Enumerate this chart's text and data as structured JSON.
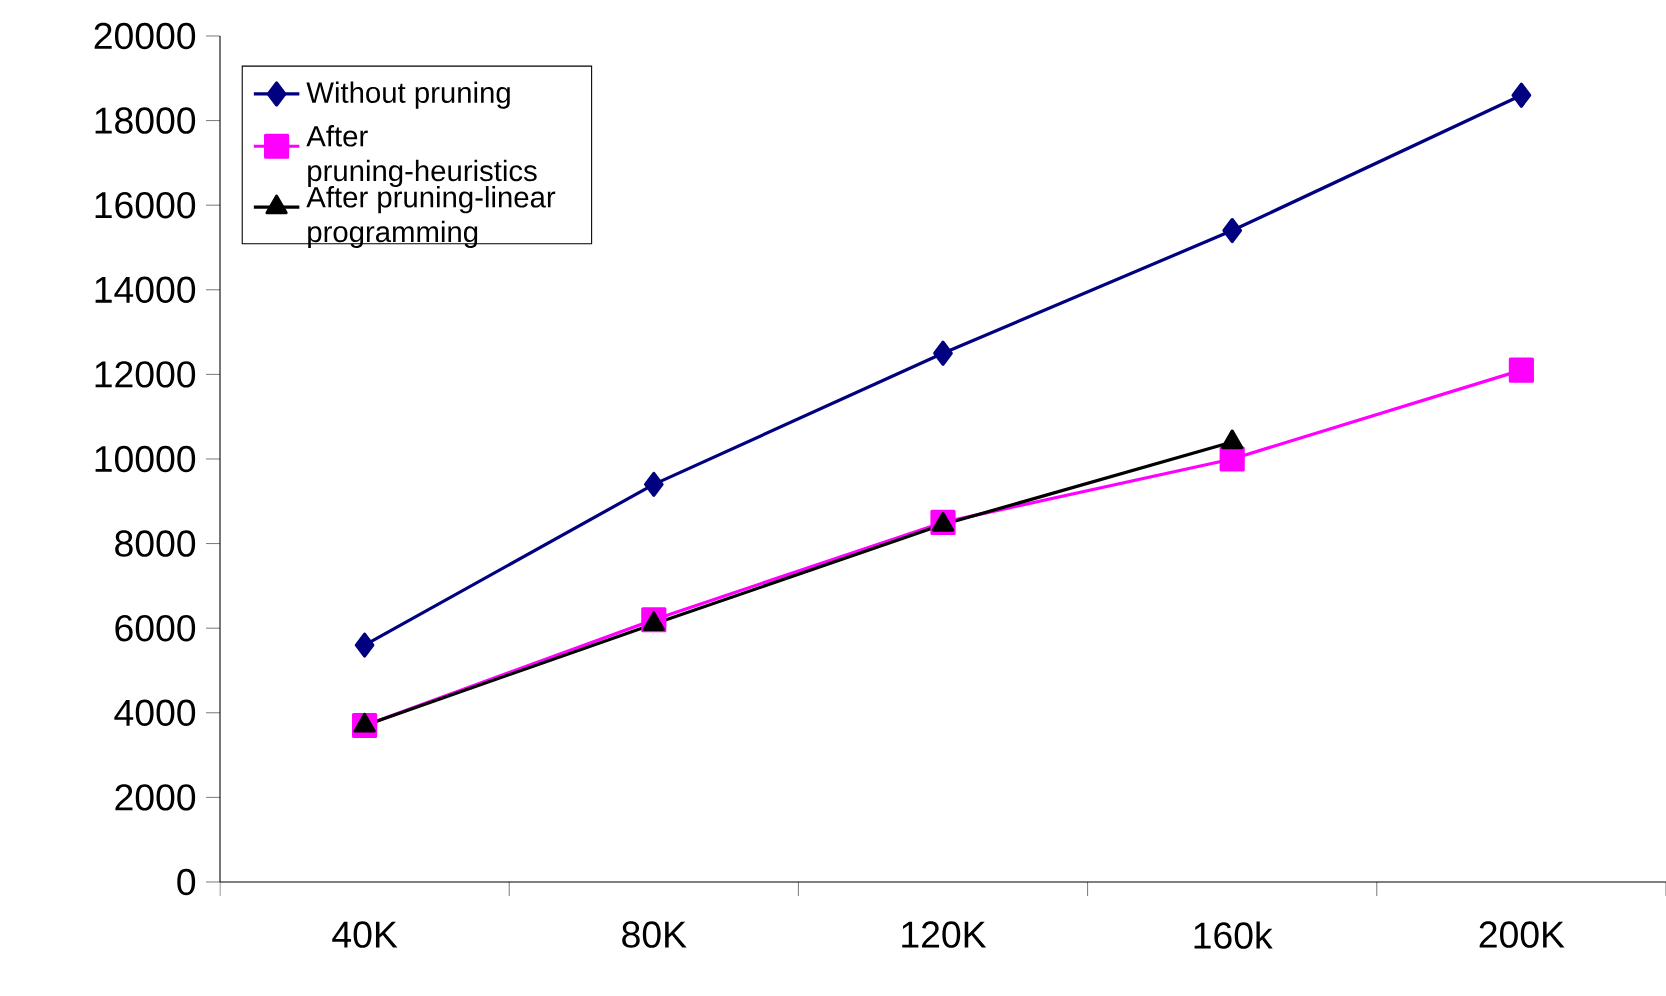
{
  "chart_data": {
    "type": "line",
    "categories": [
      "40K",
      "80K",
      "120K",
      "160k",
      "200K"
    ],
    "series": [
      {
        "name": "Without pruning",
        "color": "#000080",
        "marker": "diamond",
        "values": [
          5600,
          9400,
          12500,
          15400,
          18600
        ]
      },
      {
        "name": "After pruning-heuristics",
        "color": "#ff00ff",
        "marker": "square",
        "values": [
          3700,
          6200,
          8500,
          10000,
          12100
        ]
      },
      {
        "name": "After pruning-linear programming",
        "color": "#000000",
        "marker": "triangle",
        "values": [
          3700,
          6100,
          8450,
          10400,
          null
        ]
      }
    ],
    "ylim": [
      0,
      20000
    ],
    "yticks": [
      0,
      2000,
      4000,
      6000,
      8000,
      10000,
      12000,
      14000,
      16000,
      18000,
      20000
    ],
    "grid": false,
    "legend": "top left",
    "line_style": "solid"
  }
}
